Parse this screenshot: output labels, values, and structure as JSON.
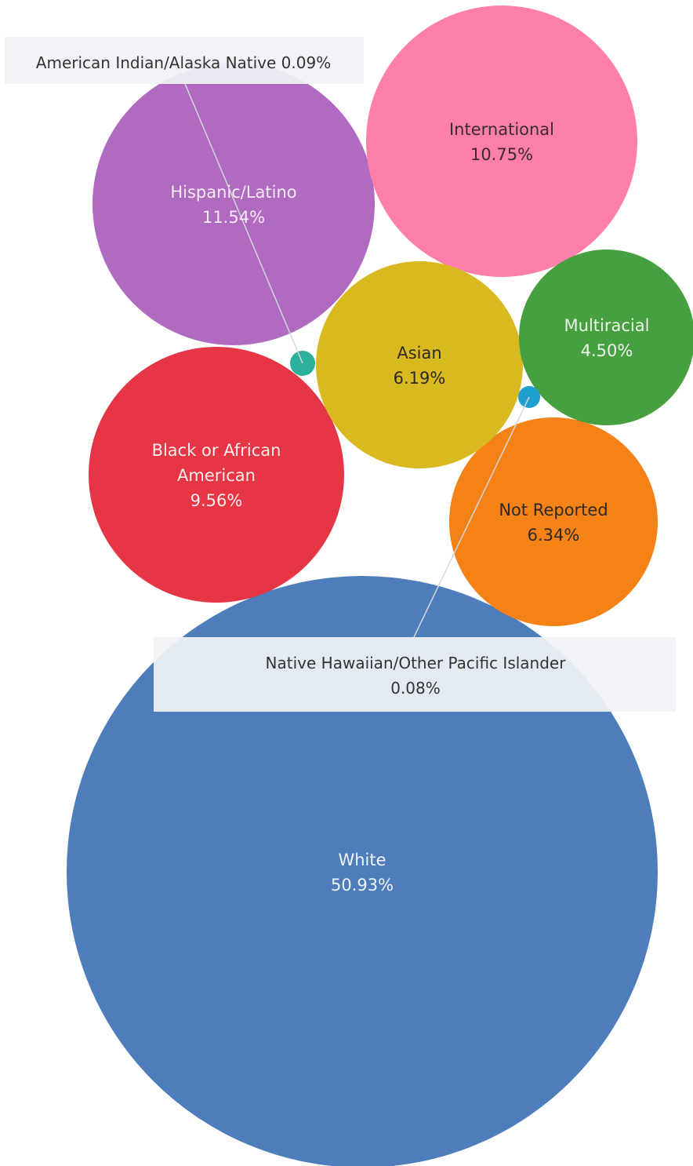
{
  "chart_data": {
    "type": "bubble",
    "title": "",
    "series": [
      {
        "name": "White",
        "value": 50.93,
        "label": "50.93%",
        "color": "#4e7dbb",
        "text_color": "#f0f3f8",
        "lines": [
          "White",
          "50.93%"
        ]
      },
      {
        "name": "Hispanic/Latino",
        "value": 11.54,
        "label": "11.54%",
        "color": "#b06bc0",
        "text_color": "#f5ebf7",
        "lines": [
          "Hispanic/Latino",
          "11.54%"
        ]
      },
      {
        "name": "International",
        "value": 10.75,
        "label": "10.75%",
        "color": "#ff7fab",
        "text_color": "#3a2a30",
        "lines": [
          "International",
          "10.75%"
        ]
      },
      {
        "name": "Black or African American",
        "value": 9.56,
        "label": "9.56%",
        "color": "#e63545",
        "text_color": "#fdecec",
        "lines": [
          "Black or African",
          "American",
          "9.56%"
        ]
      },
      {
        "name": "Not Reported",
        "value": 6.34,
        "label": "6.34%",
        "color": "#f58216",
        "text_color": "#2e2a26",
        "lines": [
          "Not Reported",
          "6.34%"
        ]
      },
      {
        "name": "Asian",
        "value": 6.19,
        "label": "6.19%",
        "color": "#d8b920",
        "text_color": "#2e2a1e",
        "lines": [
          "Asian",
          "6.19%"
        ]
      },
      {
        "name": "Multiracial",
        "value": 4.5,
        "label": "4.50%",
        "color": "#47a03f",
        "text_color": "#eef7ec",
        "lines": [
          "Multiracial",
          "4.50%"
        ]
      },
      {
        "name": "American Indian/Alaska Native",
        "value": 0.09,
        "label": "0.09%",
        "color": "#2bb09b",
        "callout": [
          "American Indian/Alaska Native 0.09%"
        ]
      },
      {
        "name": "Native Hawaiian/Other Pacific Islander",
        "value": 0.08,
        "label": "0.08%",
        "color": "#1f9fcf",
        "callout": [
          "Native Hawaiian/Other Pacific Islander",
          "0.08%"
        ]
      }
    ]
  }
}
